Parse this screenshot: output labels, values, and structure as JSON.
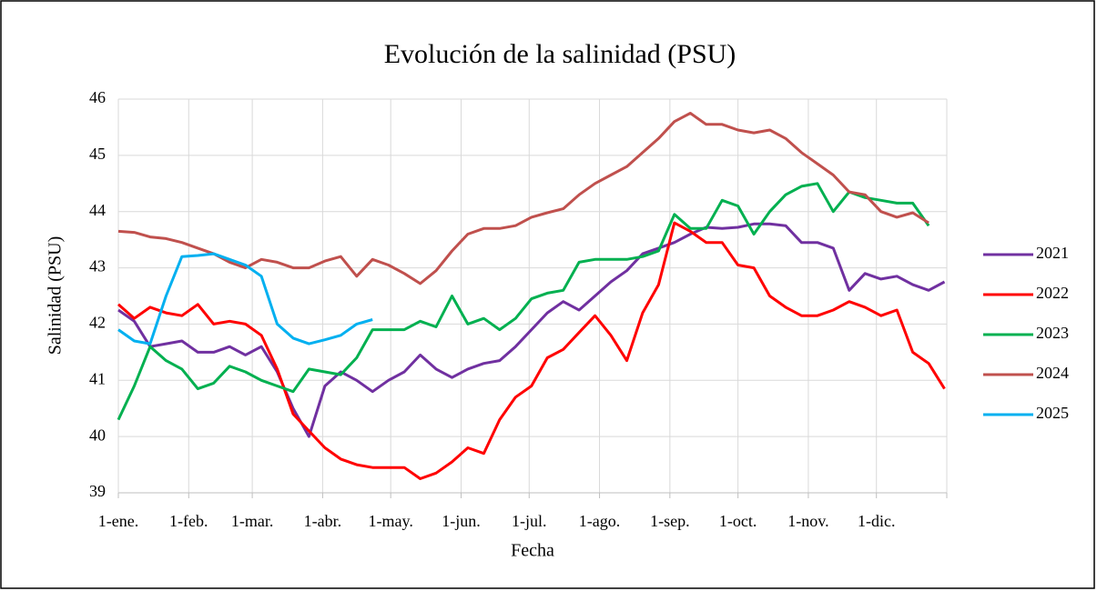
{
  "chart_data": {
    "type": "line",
    "title": "Evolución de la salinidad (PSU)",
    "x_label": "Fecha",
    "y_label": "Salinidad (PSU)",
    "x": [
      0,
      7,
      14,
      21,
      28,
      35,
      42,
      49,
      56,
      63,
      70,
      77,
      84,
      91,
      98,
      105,
      112,
      119,
      126,
      133,
      140,
      147,
      154,
      161,
      168,
      175,
      182,
      189,
      196,
      203,
      210,
      217,
      224,
      231,
      238,
      245,
      252,
      259,
      266,
      273,
      280,
      287,
      294,
      301,
      308,
      315,
      322,
      329,
      336,
      343,
      350,
      357,
      364
    ],
    "xlim": [
      0,
      365
    ],
    "xticks": [
      {
        "value": 0,
        "label": "1-ene."
      },
      {
        "value": 31,
        "label": "1-feb."
      },
      {
        "value": 59,
        "label": "1-mar."
      },
      {
        "value": 90,
        "label": "1-abr."
      },
      {
        "value": 120,
        "label": "1-may."
      },
      {
        "value": 151,
        "label": "1-jun."
      },
      {
        "value": 181,
        "label": "1-jul."
      },
      {
        "value": 212,
        "label": "1-ago."
      },
      {
        "value": 243,
        "label": "1-sep."
      },
      {
        "value": 273,
        "label": "1-oct."
      },
      {
        "value": 304,
        "label": "1-nov."
      },
      {
        "value": 334,
        "label": "1-dic."
      },
      {
        "value": 365,
        "label": ""
      }
    ],
    "ylim": [
      39,
      46
    ],
    "yticks": [
      39,
      40,
      41,
      42,
      43,
      44,
      45,
      46
    ],
    "grid": true,
    "legend": "right",
    "series": [
      {
        "name": "2021",
        "color": "#7030a0",
        "values": [
          42.25,
          42.05,
          41.6,
          41.65,
          41.7,
          41.5,
          41.5,
          41.6,
          41.45,
          41.6,
          41.15,
          40.5,
          40.0,
          40.9,
          41.15,
          41.0,
          40.8,
          41.0,
          41.15,
          41.45,
          41.2,
          41.05,
          41.2,
          41.3,
          41.35,
          41.6,
          41.9,
          42.2,
          42.4,
          42.25,
          42.5,
          42.75,
          42.95,
          43.25,
          43.35,
          43.45,
          43.6,
          43.72,
          43.7,
          43.72,
          43.78,
          43.78,
          43.75,
          43.45,
          43.45,
          43.35,
          42.6,
          42.9,
          42.8,
          42.85,
          42.7,
          42.6,
          42.75
        ]
      },
      {
        "name": "2022",
        "color": "#ff0000",
        "values": [
          42.35,
          42.1,
          42.3,
          42.2,
          42.15,
          42.35,
          42.0,
          42.05,
          42.0,
          41.8,
          41.2,
          40.4,
          40.1,
          39.8,
          39.6,
          39.5,
          39.45,
          39.45,
          39.45,
          39.25,
          39.35,
          39.55,
          39.8,
          39.7,
          40.3,
          40.7,
          40.9,
          41.4,
          41.55,
          41.85,
          42.15,
          41.8,
          41.35,
          42.2,
          42.7,
          43.8,
          43.65,
          43.45,
          43.45,
          43.05,
          43.0,
          42.5,
          42.3,
          42.15,
          42.15,
          42.25,
          42.4,
          42.3,
          42.15,
          42.25,
          41.5,
          41.3,
          40.85
        ]
      },
      {
        "name": "2023",
        "color": "#00b050",
        "values": [
          40.3,
          40.9,
          41.6,
          41.35,
          41.2,
          40.85,
          40.95,
          41.25,
          41.15,
          41.0,
          40.9,
          40.8,
          41.2,
          41.15,
          41.1,
          41.4,
          41.9,
          41.9,
          41.9,
          42.05,
          41.95,
          42.5,
          42.0,
          42.1,
          41.9,
          42.1,
          42.45,
          42.55,
          42.6,
          43.1,
          43.15,
          43.15,
          43.15,
          43.2,
          43.3,
          43.95,
          43.7,
          43.7,
          44.2,
          44.1,
          43.6,
          44.0,
          44.3,
          44.45,
          44.5,
          44.0,
          44.35,
          44.25,
          44.2,
          44.15,
          44.15,
          43.75,
          null
        ]
      },
      {
        "name": "2024",
        "color": "#c0504d",
        "values": [
          43.65,
          43.63,
          43.55,
          43.52,
          43.45,
          43.35,
          43.25,
          43.1,
          43.0,
          43.15,
          43.1,
          43.0,
          43.0,
          43.12,
          43.2,
          42.85,
          43.15,
          43.05,
          42.9,
          42.72,
          42.95,
          43.3,
          43.6,
          43.7,
          43.7,
          43.75,
          43.9,
          43.98,
          44.05,
          44.3,
          44.5,
          44.65,
          44.8,
          45.05,
          45.3,
          45.6,
          45.75,
          45.55,
          45.55,
          45.45,
          45.4,
          45.45,
          45.3,
          45.05,
          44.85,
          44.65,
          44.35,
          44.3,
          44.0,
          43.9,
          43.98,
          43.8,
          null
        ]
      },
      {
        "name": "2025",
        "color": "#00b0f0",
        "values": [
          41.9,
          41.7,
          41.65,
          42.5,
          43.2,
          43.22,
          43.25,
          43.15,
          43.05,
          42.85,
          42.0,
          41.75,
          41.65,
          41.72,
          41.8,
          42.0,
          42.08,
          null,
          null,
          null,
          null,
          null,
          null,
          null,
          null,
          null,
          null,
          null,
          null,
          null,
          null,
          null,
          null,
          null,
          null,
          null,
          null,
          null,
          null,
          null,
          null,
          null,
          null,
          null,
          null,
          null,
          null,
          null,
          null,
          null,
          null,
          null,
          null
        ]
      }
    ]
  }
}
